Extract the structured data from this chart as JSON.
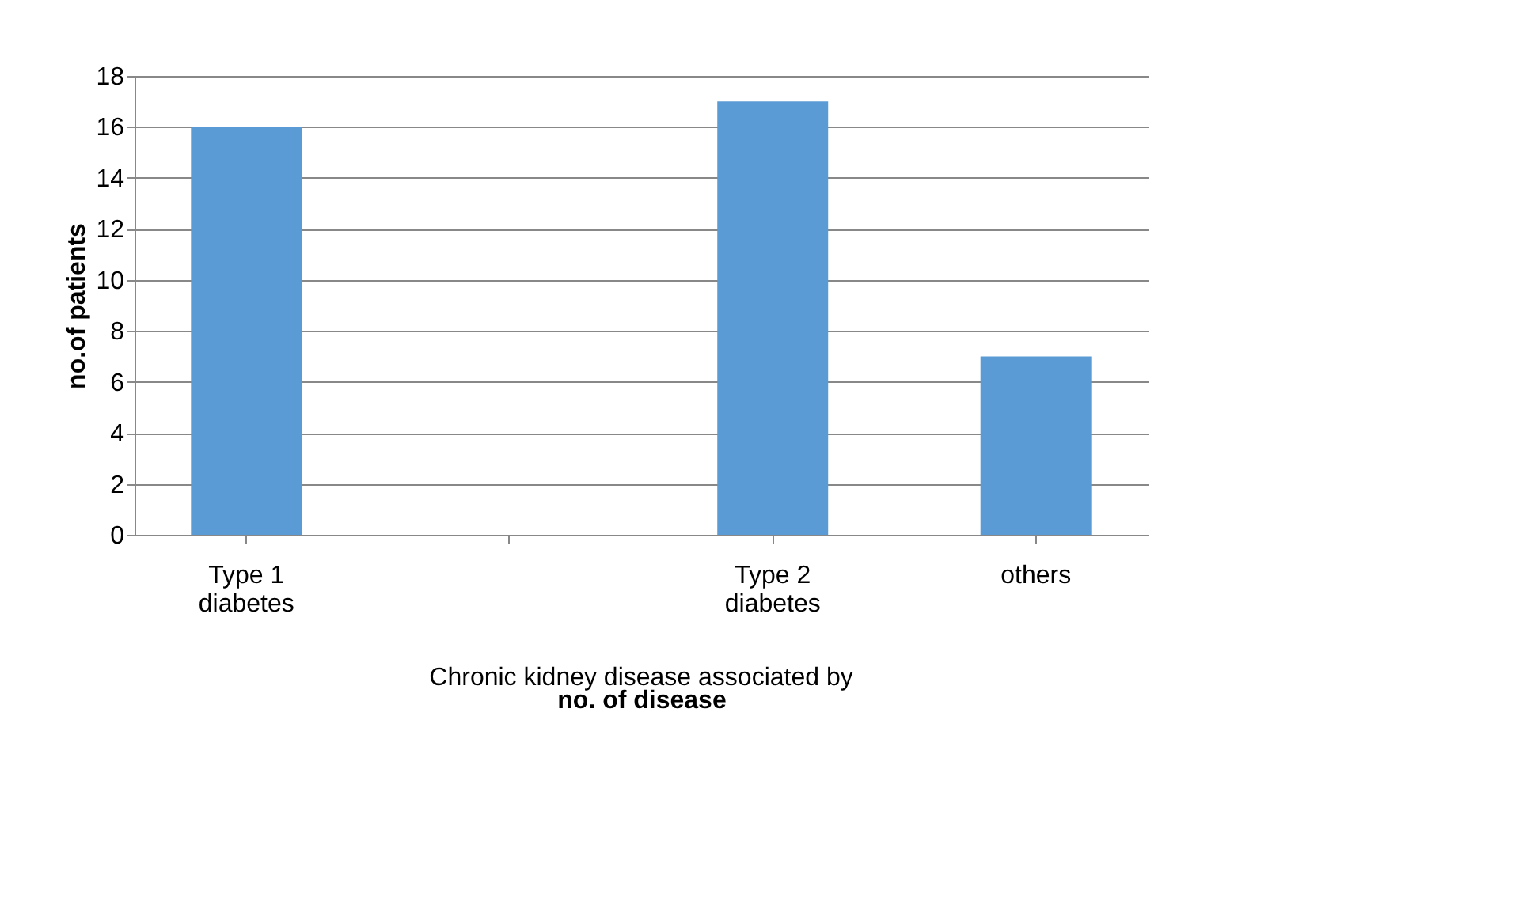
{
  "chart_data": {
    "type": "bar",
    "categories": [
      "Type 1 diabetes",
      null,
      "Type 2 diabetes",
      "others"
    ],
    "values": [
      16,
      null,
      17,
      7
    ],
    "color": "#5b9bd5",
    "xlabel": "no. of disease",
    "ylabel": "no.of patients",
    "annotations": [
      "Chronic kidney disease associated by"
    ],
    "ylim": [
      0,
      18
    ],
    "yticks": [
      0,
      2,
      4,
      6,
      8,
      10,
      12,
      14,
      16,
      18
    ],
    "grid": "y",
    "legend": false
  }
}
